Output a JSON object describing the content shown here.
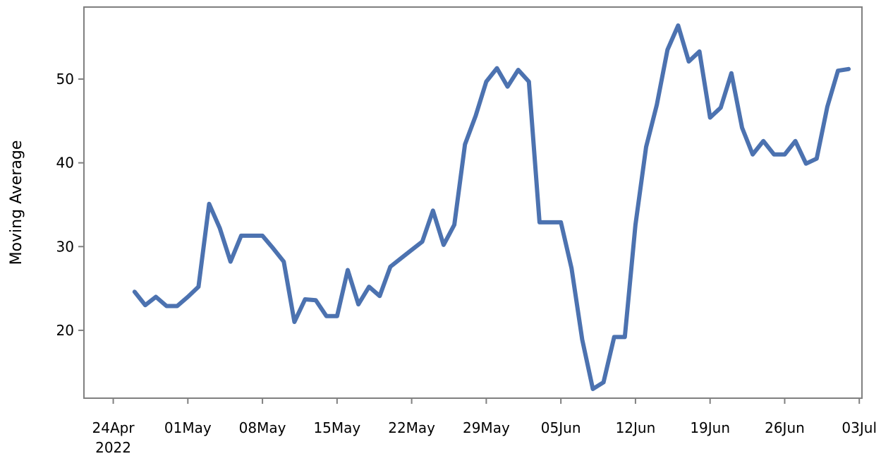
{
  "chart_data": {
    "type": "line",
    "title": "",
    "xlabel": "",
    "ylabel": "Moving Average",
    "x_ticks": [
      {
        "date": "2022-04-24",
        "label": "24Apr",
        "sublabel": "2022"
      },
      {
        "date": "2022-05-01",
        "label": "01May",
        "sublabel": ""
      },
      {
        "date": "2022-05-08",
        "label": "08May",
        "sublabel": ""
      },
      {
        "date": "2022-05-15",
        "label": "15May",
        "sublabel": ""
      },
      {
        "date": "2022-05-22",
        "label": "22May",
        "sublabel": ""
      },
      {
        "date": "2022-05-29",
        "label": "29May",
        "sublabel": ""
      },
      {
        "date": "2022-06-05",
        "label": "05Jun",
        "sublabel": ""
      },
      {
        "date": "2022-06-12",
        "label": "12Jun",
        "sublabel": ""
      },
      {
        "date": "2022-06-19",
        "label": "19Jun",
        "sublabel": ""
      },
      {
        "date": "2022-06-26",
        "label": "26Jun",
        "sublabel": ""
      },
      {
        "date": "2022-07-03",
        "label": "03Jul",
        "sublabel": ""
      }
    ],
    "y_ticks": [
      20,
      30,
      40,
      50
    ],
    "xlim": [
      "2022-04-21T06:00",
      "2022-07-03T06:00"
    ],
    "ylim": [
      11.9,
      58.6
    ],
    "grid": false,
    "colors": {
      "line": "#4c72b0",
      "frame": "#808080"
    },
    "series": [
      {
        "x": [
          "2022-04-26",
          "2022-04-27",
          "2022-04-28",
          "2022-04-29",
          "2022-04-30",
          "2022-05-01",
          "2022-05-02",
          "2022-05-03",
          "2022-05-04",
          "2022-05-05",
          "2022-05-06",
          "2022-05-07",
          "2022-05-08",
          "2022-05-09",
          "2022-05-10",
          "2022-05-11",
          "2022-05-12",
          "2022-05-13",
          "2022-05-14",
          "2022-05-15",
          "2022-05-16",
          "2022-05-17",
          "2022-05-18",
          "2022-05-19",
          "2022-05-20",
          "2022-05-21",
          "2022-05-22",
          "2022-05-23",
          "2022-05-24",
          "2022-05-25",
          "2022-05-26",
          "2022-05-27",
          "2022-05-28",
          "2022-05-29",
          "2022-05-30",
          "2022-05-31",
          "2022-06-01",
          "2022-06-02",
          "2022-06-03",
          "2022-06-04",
          "2022-06-05",
          "2022-06-06",
          "2022-06-07",
          "2022-06-08",
          "2022-06-09",
          "2022-06-10",
          "2022-06-11",
          "2022-06-12",
          "2022-06-13",
          "2022-06-14",
          "2022-06-15",
          "2022-06-16",
          "2022-06-17",
          "2022-06-18",
          "2022-06-19",
          "2022-06-20",
          "2022-06-21",
          "2022-06-22",
          "2022-06-23",
          "2022-06-24",
          "2022-06-25",
          "2022-06-26",
          "2022-06-27",
          "2022-06-28",
          "2022-06-29",
          "2022-06-30",
          "2022-07-01",
          "2022-07-02"
        ],
        "values": [
          24.6,
          23.0,
          24.0,
          22.9,
          22.9,
          24.0,
          25.2,
          35.1,
          32.2,
          28.2,
          31.3,
          31.3,
          31.3,
          29.8,
          28.2,
          21.0,
          23.7,
          23.6,
          21.7,
          21.7,
          27.2,
          23.1,
          25.2,
          24.1,
          27.6,
          28.6,
          29.6,
          30.6,
          34.3,
          30.2,
          32.6,
          42.2,
          45.6,
          49.7,
          51.3,
          49.1,
          51.1,
          49.7,
          32.9,
          32.9,
          32.9,
          27.4,
          18.9,
          13.0,
          13.8,
          19.2,
          19.2,
          32.6,
          41.9,
          46.9,
          53.5,
          56.4,
          52.1,
          53.3,
          45.4,
          46.6,
          50.7,
          44.2,
          41.0,
          42.6,
          41.0,
          41.0,
          42.6,
          39.9,
          40.5,
          46.7,
          51.0,
          51.2
        ]
      }
    ]
  }
}
